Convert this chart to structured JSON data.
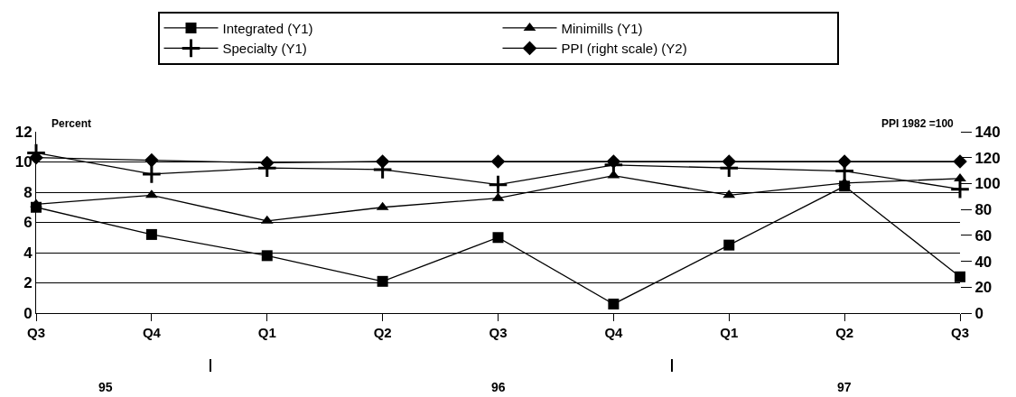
{
  "chart_data": {
    "type": "line",
    "categories": [
      "Q3",
      "Q4",
      "Q1",
      "Q2",
      "Q3",
      "Q4",
      "Q1",
      "Q2",
      "Q3"
    ],
    "ylabel": "Percent",
    "y2label": "PPI 1982 =100",
    "series": [
      {
        "name": "Integrated (Y1)",
        "color": "#000000",
        "marker": "square",
        "values": [
          7.0,
          5.2,
          3.8,
          2.1,
          5.0,
          0.6,
          4.5,
          8.4,
          2.4
        ]
      },
      {
        "name": "Minimills (Y1)",
        "color": "#000000",
        "marker": "triangle",
        "values": [
          7.2,
          7.8,
          6.1,
          7.0,
          7.6,
          9.1,
          7.8,
          8.6,
          8.9
        ]
      },
      {
        "name": "Specialty (Y1)",
        "color": "#000000",
        "marker": "cross",
        "values": [
          10.6,
          9.2,
          9.6,
          9.5,
          8.5,
          9.8,
          9.6,
          9.4,
          8.2
        ]
      },
      {
        "name": "PPI (right scale) (Y2)",
        "color": "#000000",
        "marker": "diamond",
        "axis": "y2",
        "values": [
          120,
          118,
          116,
          117,
          117,
          117,
          117,
          117,
          117
        ]
      }
    ],
    "ylim": [
      0,
      12
    ],
    "yticks": [
      0,
      2,
      4,
      6,
      8,
      10,
      12
    ],
    "y2lim": [
      0,
      140
    ],
    "y2ticks": [
      0,
      20,
      40,
      60,
      80,
      100,
      120,
      140
    ],
    "grid": "y",
    "legend": "top",
    "line_style": "solid",
    "annotations": [
      "95",
      "96",
      "97"
    ]
  }
}
